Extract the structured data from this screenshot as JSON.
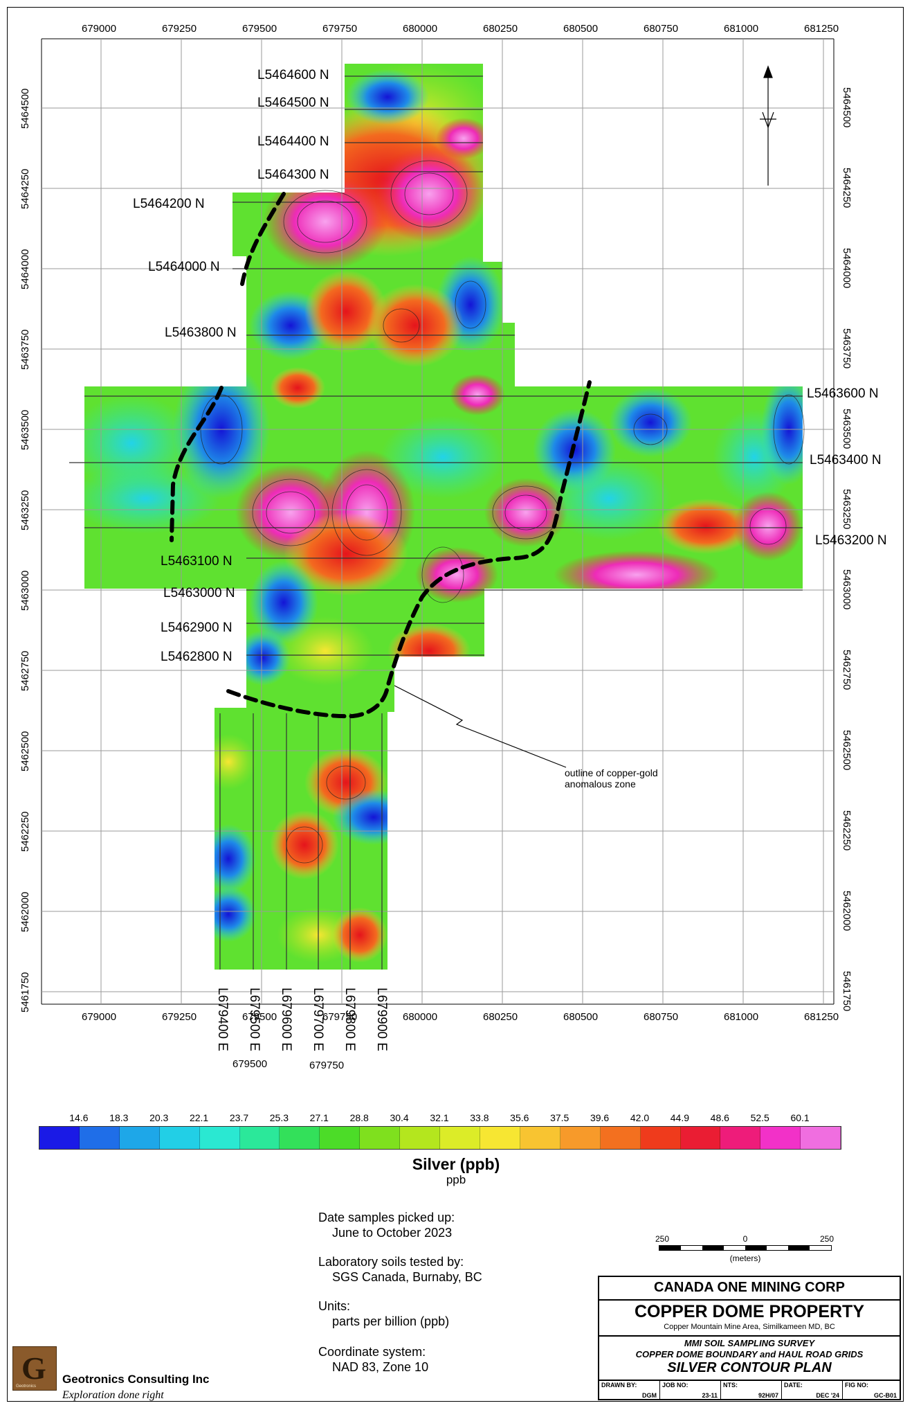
{
  "map": {
    "easting_ticks": [
      "679000",
      "679250",
      "679500",
      "679750",
      "680000",
      "680250",
      "680500",
      "680750",
      "681000",
      "681250"
    ],
    "northing_ticks": [
      "5464500",
      "5464250",
      "5464000",
      "5463750",
      "5463500",
      "5463250",
      "5463000",
      "5462750",
      "5462500",
      "5462250",
      "5462000",
      "5461750"
    ],
    "north_lines": [
      "L5464600 N",
      "L5464500 N",
      "L5464400 N",
      "L5464300 N",
      "L5464200 N",
      "L5464000 N",
      "L5463800 N",
      "L5463600 N",
      "L5463400 N",
      "L5463200 N",
      "L5463100 N",
      "L5463000 N",
      "L5462900 N",
      "L5462800 N"
    ],
    "east_lines": [
      "L679400 E",
      "L679500 E",
      "L679600 E",
      "L679700 E",
      "L679800 E",
      "L679900 E"
    ],
    "sub_labels": [
      "679500",
      "679750"
    ],
    "callout": [
      "outline of copper-gold",
      "anomalous zone"
    ],
    "zone_outline_style": "dashed black"
  },
  "legend": {
    "values": [
      "14.6",
      "18.3",
      "20.3",
      "22.1",
      "23.7",
      "25.3",
      "27.1",
      "28.8",
      "30.4",
      "32.1",
      "33.8",
      "35.6",
      "37.5",
      "39.6",
      "42.0",
      "44.9",
      "48.6",
      "52.5",
      "60.1"
    ],
    "colors": [
      "#1a1ae6",
      "#1f6ee8",
      "#1ea7e8",
      "#22cfe6",
      "#2ae8d2",
      "#2be89a",
      "#33e05a",
      "#4cdc28",
      "#7fe01e",
      "#b4e61e",
      "#dcec28",
      "#f7e632",
      "#f8c431",
      "#f79a2a",
      "#f3701f",
      "#ef3b1c",
      "#ea1d33",
      "#ee1c7a",
      "#f231c8",
      "#f06ee0"
    ],
    "title": "Silver (ppb)",
    "units": "ppb"
  },
  "notes": [
    {
      "heading": "Date samples picked up:",
      "value": "June to October 2023"
    },
    {
      "heading": "Laboratory soils tested by:",
      "value": "SGS Canada, Burnaby, BC"
    },
    {
      "heading": "Units:",
      "value": "parts per billion (ppb)"
    },
    {
      "heading": "Coordinate system:",
      "value": "NAD 83, Zone 10"
    }
  ],
  "scale": {
    "labels": [
      "250",
      "0",
      "250"
    ],
    "unit": "(meters)"
  },
  "title_block": {
    "company": "CANADA ONE MINING CORP",
    "property": "COPPER DOME PROPERTY",
    "location": "Copper Mountain Mine Area, Similkameen MD, BC",
    "survey1": "MMI SOIL SAMPLING SURVEY",
    "survey2": "COPPER DOME BOUNDARY and HAUL ROAD GRIDS",
    "plan": "SILVER CONTOUR PLAN",
    "drawn_by_k": "DRAWN BY:",
    "drawn_by_v": "DGM",
    "job_no_k": "JOB NO:",
    "job_no_v": "23-11",
    "nts_k": "NTS:",
    "nts_v": "92H/07",
    "date_k": "DATE:",
    "date_v": "DEC '24",
    "fig_k": "FIG NO:",
    "fig_v": "GC-B01"
  },
  "company": {
    "name": "Geotronics Consulting Inc",
    "tagline": "Exploration done right",
    "logo_letter": "G",
    "logo_text": "Geotronics"
  }
}
